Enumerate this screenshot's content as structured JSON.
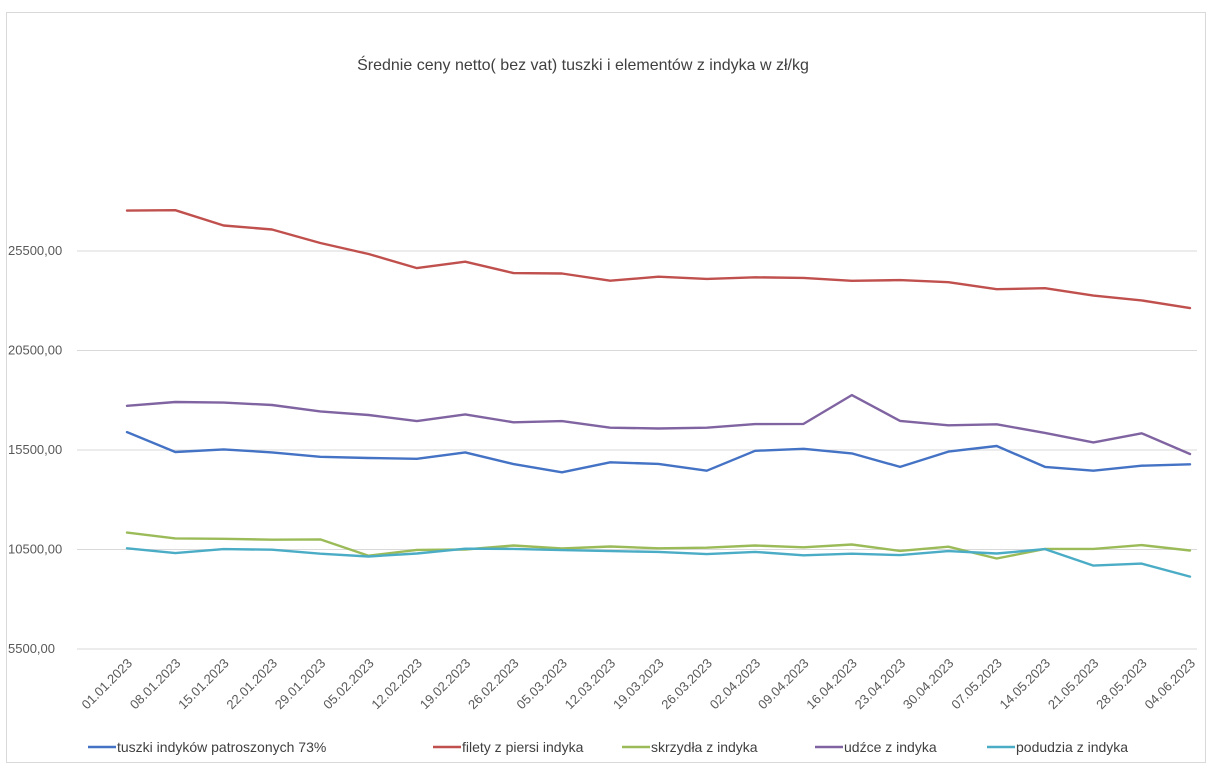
{
  "chart_data": {
    "type": "line",
    "title": "Średnie ceny netto( bez vat) tuszki i elementów z indyka w zł/kg",
    "xlabel": "",
    "ylabel": "",
    "ylim": [
      5500,
      30500
    ],
    "yticks": [
      "5500,00",
      "10500,00",
      "15500,00",
      "20500,00",
      "25500,00"
    ],
    "ytick_values": [
      5500,
      10500,
      15500,
      20500,
      25500
    ],
    "grid": true,
    "legend_position": "bottom",
    "categories": [
      "01.01.2023",
      "08.01.2023",
      "15.01.2023",
      "22.01.2023",
      "29.01.2023",
      "05.02.2023",
      "12.02.2023",
      "19.02.2023",
      "26.02.2023",
      "05.03.2023",
      "12.03.2023",
      "19.03.2023",
      "26.03.2023",
      "02.04.2023",
      "09.04.2023",
      "16.04.2023",
      "23.04.2023",
      "30.04.2023",
      "07.05.2023",
      "14.05.2023",
      "21.05.2023",
      "28.05.2023",
      "04.06.2023"
    ],
    "series": [
      {
        "name": "tuszki indyków patroszonych 73%",
        "color": "#4472c4",
        "values": [
          16400,
          15400,
          15530,
          15380,
          15160,
          15100,
          15060,
          15380,
          14790,
          14380,
          14880,
          14800,
          14460,
          15460,
          15560,
          15330,
          14650,
          15420,
          15700,
          14650,
          14460,
          14710,
          14780
        ]
      },
      {
        "name": "filety z piersi indyka",
        "color": "#c0504d",
        "values": [
          27530,
          27550,
          26780,
          26580,
          25900,
          25350,
          24640,
          24960,
          24390,
          24370,
          24010,
          24210,
          24100,
          24180,
          24150,
          24000,
          24040,
          23930,
          23580,
          23630,
          23260,
          23020,
          22630
        ]
      },
      {
        "name": "skrzydła z indyka",
        "color": "#9bbb59",
        "values": [
          11350,
          11060,
          11040,
          10990,
          11010,
          10190,
          10480,
          10500,
          10700,
          10550,
          10650,
          10560,
          10590,
          10700,
          10610,
          10750,
          10430,
          10640,
          10050,
          10530,
          10530,
          10720,
          10450
        ]
      },
      {
        "name": "udźce z indyka",
        "color": "#8064a2",
        "values": [
          17720,
          17910,
          17880,
          17760,
          17440,
          17260,
          16950,
          17290,
          16890,
          16950,
          16620,
          16580,
          16620,
          16800,
          16810,
          18260,
          16960,
          16740,
          16790,
          16360,
          15880,
          16340,
          15300
        ]
      },
      {
        "name": "podudzia z indyka",
        "color": "#4bacc6",
        "values": [
          10560,
          10320,
          10520,
          10490,
          10290,
          10150,
          10300,
          10540,
          10530,
          10470,
          10420,
          10380,
          10270,
          10380,
          10210,
          10290,
          10220,
          10420,
          10300,
          10520,
          9690,
          9790,
          9140
        ]
      }
    ]
  }
}
